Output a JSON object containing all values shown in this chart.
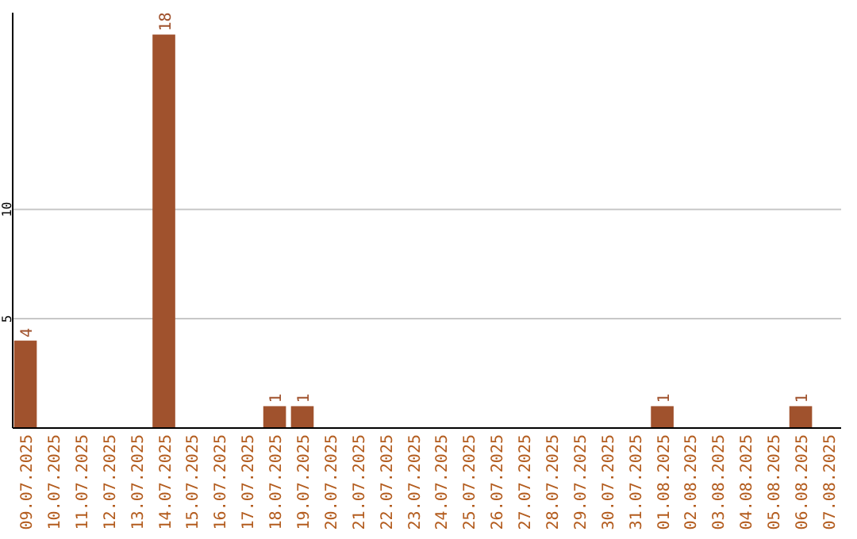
{
  "chart_data": {
    "type": "bar",
    "categories": [
      "09.07.2025",
      "10.07.2025",
      "11.07.2025",
      "12.07.2025",
      "13.07.2025",
      "14.07.2025",
      "15.07.2025",
      "16.07.2025",
      "17.07.2025",
      "18.07.2025",
      "19.07.2025",
      "20.07.2025",
      "21.07.2025",
      "22.07.2025",
      "23.07.2025",
      "24.07.2025",
      "25.07.2025",
      "26.07.2025",
      "27.07.2025",
      "28.07.2025",
      "29.07.2025",
      "30.07.2025",
      "31.07.2025",
      "01.08.2025",
      "02.08.2025",
      "03.08.2025",
      "04.08.2025",
      "05.08.2025",
      "06.08.2025",
      "07.08.2025"
    ],
    "values": [
      4,
      0,
      0,
      0,
      0,
      18,
      0,
      0,
      0,
      1,
      1,
      0,
      0,
      0,
      0,
      0,
      0,
      0,
      0,
      0,
      0,
      0,
      0,
      1,
      0,
      0,
      0,
      0,
      1,
      0
    ],
    "value_labels": [
      "4",
      null,
      null,
      null,
      null,
      "18",
      null,
      null,
      null,
      "1",
      "1",
      null,
      null,
      null,
      null,
      null,
      null,
      null,
      null,
      null,
      null,
      null,
      null,
      "1",
      null,
      null,
      null,
      null,
      "1",
      null
    ],
    "color": "#a0522d",
    "ylim": [
      0,
      19
    ],
    "yticks": [
      5,
      10
    ],
    "grid": "y"
  }
}
